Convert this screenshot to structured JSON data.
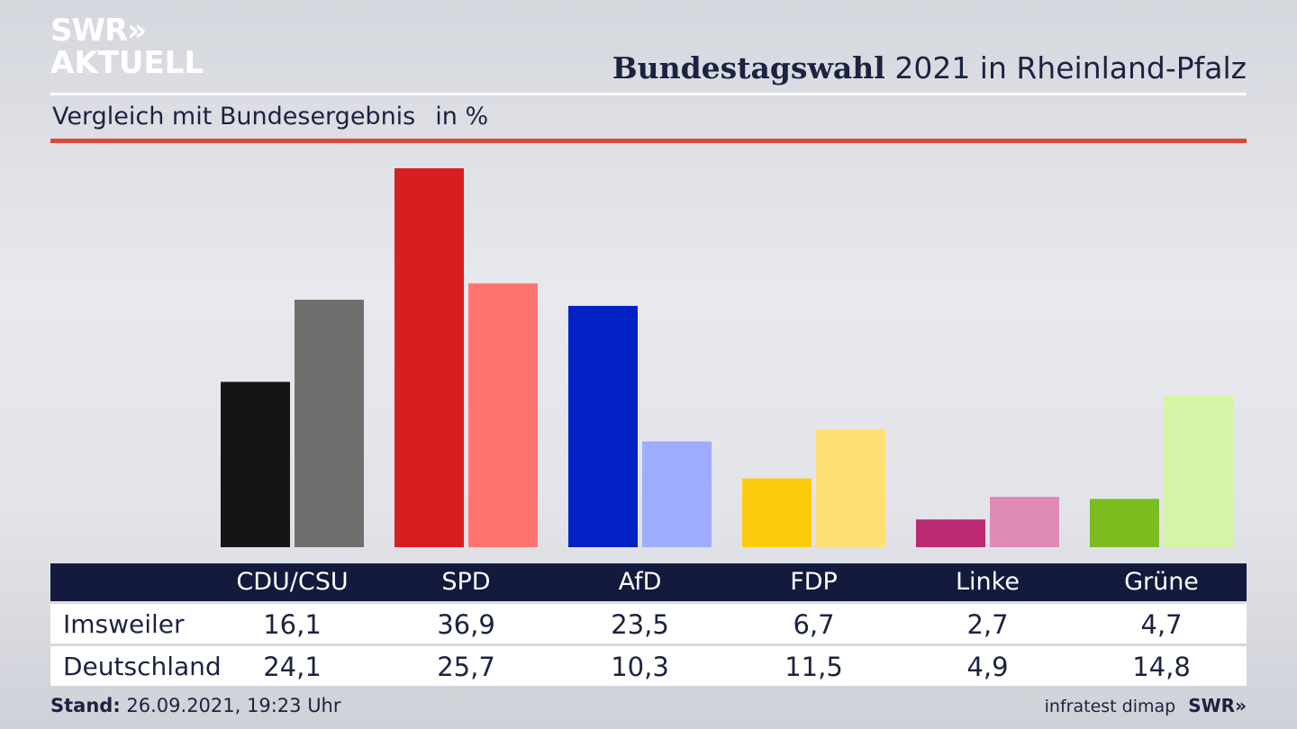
{
  "brand": {
    "logo_line1": "SWR»",
    "logo_line2": "AKTUELL",
    "footer_logo": "SWR»"
  },
  "header": {
    "title_bold": "Bundestagswahl",
    "title_rest": "2021 in Rheinland-Pfalz",
    "subtitle": "Vergleich mit Bundesergebnis",
    "unit": "in %"
  },
  "footer": {
    "stand_label": "Stand:",
    "stand_value": "26.09.2021, 19:23 Uhr",
    "source": "infratest dimap"
  },
  "colors": {
    "CDU/CSU": [
      "#151515",
      "#716f6d"
    ],
    "SPD": [
      "#d71f1f",
      "#ff7470"
    ],
    "AfD": [
      "#0221c4",
      "#9eadff"
    ],
    "FDP": [
      "#fecb0a",
      "#ffe075"
    ],
    "Linke": [
      "#bb2a72",
      "#e08ab6"
    ],
    "Grüne": [
      "#7bbc1f",
      "#d4f5a6"
    ]
  },
  "chart_data": {
    "type": "bar",
    "categories": [
      "CDU/CSU",
      "SPD",
      "AfD",
      "FDP",
      "Linke",
      "Grüne"
    ],
    "series": [
      {
        "name": "Imsweiler",
        "values": [
          "16,1",
          "36,9",
          "23,5",
          "6,7",
          "2,7",
          "4,7"
        ]
      },
      {
        "name": "Deutschland",
        "values": [
          "24,1",
          "25,7",
          "10,3",
          "11,5",
          "4,9",
          "14,8"
        ]
      }
    ],
    "ylim": [
      0,
      36.9
    ],
    "grid": false,
    "legend": "table-below"
  }
}
